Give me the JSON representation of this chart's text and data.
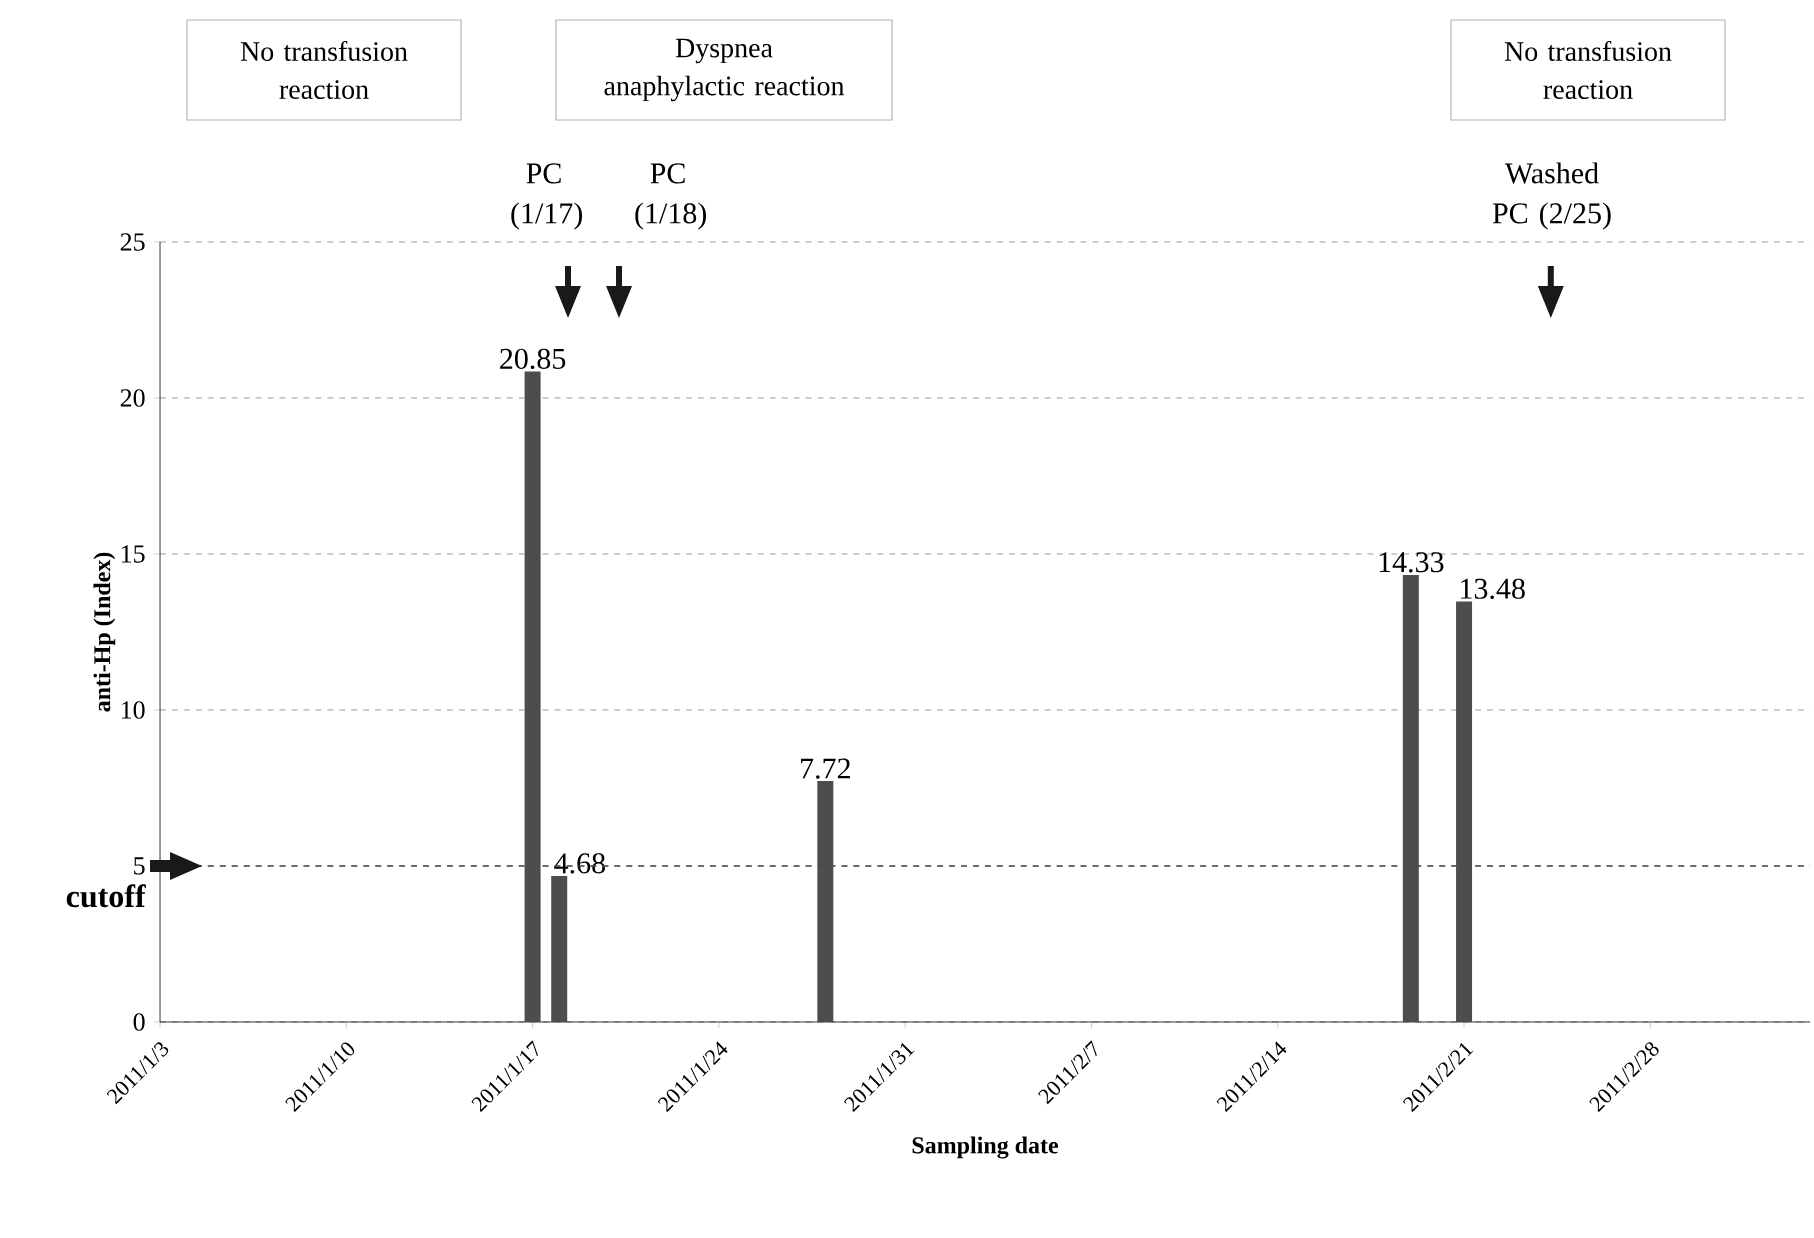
{
  "chart_data": {
    "type": "bar",
    "xlabel": "Sampling date",
    "ylabel": "anti-Hp (Index)",
    "x": [
      "2011-01-17",
      "2011-01-18",
      "2011-01-28",
      "2011-02-19",
      "2011-02-21"
    ],
    "values": [
      20.85,
      4.68,
      7.72,
      14.33,
      13.48
    ],
    "color": "#4d4d4d",
    "data_labels": true,
    "xlim": [
      "2011-01-03",
      "2011-03-06"
    ],
    "xticks": [
      {
        "value": "2011-01-03",
        "label": "2011/1/3"
      },
      {
        "value": "2011-01-10",
        "label": "2011/1/10"
      },
      {
        "value": "2011-01-17",
        "label": "2011/1/17"
      },
      {
        "value": "2011-01-24",
        "label": "2011/1/24"
      },
      {
        "value": "2011-01-31",
        "label": "2011/1/31"
      },
      {
        "value": "2011-02-07",
        "label": "2011/2/7"
      },
      {
        "value": "2011-02-14",
        "label": "2011/2/14"
      },
      {
        "value": "2011-02-21",
        "label": "2011/2/21"
      },
      {
        "value": "2011-02-28",
        "label": "2011/2/28"
      }
    ],
    "ylim": [
      0,
      25
    ],
    "yticks": [
      0,
      5,
      10,
      15,
      20,
      25
    ],
    "grid": "y",
    "ref_lines": [
      {
        "axis": "y",
        "value": 5,
        "label": "cutoff"
      }
    ],
    "annotations": [
      "No transfusion reaction",
      "Dyspnea anaphylactic reaction",
      "No transfusion reaction",
      "PC (1/17)",
      "PC (1/18)",
      "Washed PC (2/25)"
    ]
  }
}
